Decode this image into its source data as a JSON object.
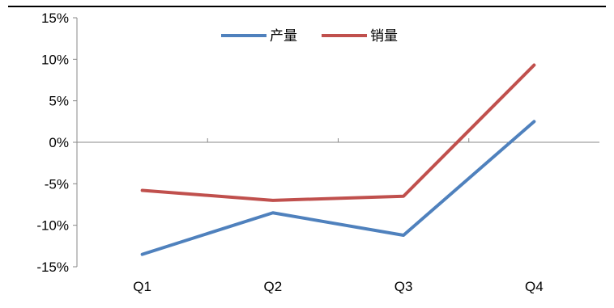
{
  "chart_data": {
    "type": "line",
    "title": "",
    "xlabel": "",
    "ylabel": "",
    "categories": [
      "Q1",
      "Q2",
      "Q3",
      "Q4"
    ],
    "ylim": [
      -15,
      15
    ],
    "yticks": [
      15,
      10,
      5,
      0,
      -5,
      -10,
      -15
    ],
    "ytick_labels": [
      "15%",
      "10%",
      "5%",
      "0%",
      "-5%",
      "-10%",
      "-15%"
    ],
    "grid": false,
    "legend_position": "top-center",
    "series": [
      {
        "name": "产量",
        "color": "#4F81BD",
        "values": [
          -13.5,
          -8.5,
          -11.2,
          2.5
        ]
      },
      {
        "name": "销量",
        "color": "#C0504D",
        "values": [
          -5.8,
          -7.0,
          -6.5,
          9.3
        ]
      }
    ]
  }
}
